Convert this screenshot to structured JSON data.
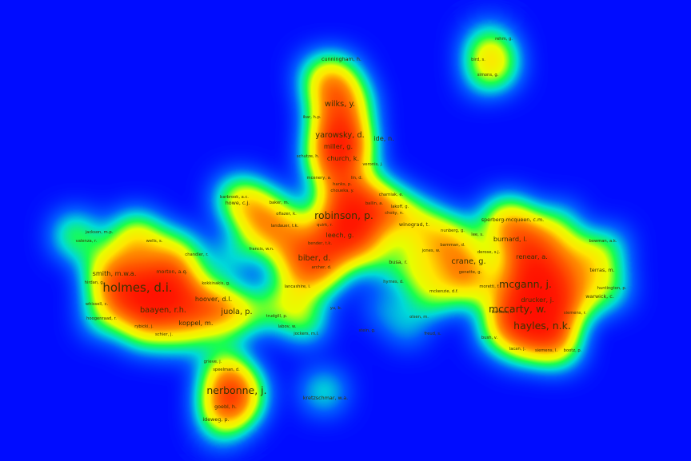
{
  "map": {
    "labels": [
      {
        "text": "rehm, g.",
        "size": 0
      },
      {
        "text": "bird, s.",
        "size": 0
      },
      {
        "text": "simons, g.",
        "size": 0
      },
      {
        "text": "cunningham, h.",
        "size": 1
      },
      {
        "text": "wilks, y.",
        "size": 3
      },
      {
        "text": "ikar, h.p.",
        "size": 0
      },
      {
        "text": "yarowsky, d.",
        "size": 3
      },
      {
        "text": "ide, n.",
        "size": 2
      },
      {
        "text": "miller, g.",
        "size": 2
      },
      {
        "text": "church, k.",
        "size": 2
      },
      {
        "text": "schutze, h.",
        "size": 0
      },
      {
        "text": "veronis, j.",
        "size": 0
      },
      {
        "text": "mcenery, a.",
        "size": 0
      },
      {
        "text": "lin, d.",
        "size": 0
      },
      {
        "text": "hanks, p.",
        "size": 0
      },
      {
        "text": "choueka, y.",
        "size": 0
      },
      {
        "text": "charniak, e.",
        "size": 0
      },
      {
        "text": "ballin, a.",
        "size": 0
      },
      {
        "text": "lakoff, g.",
        "size": 0
      },
      {
        "text": "choky, n.",
        "size": 0
      },
      {
        "text": "barbrook, a.c.",
        "size": 0
      },
      {
        "text": "baker, m.",
        "size": 0
      },
      {
        "text": "howe, c.j.",
        "size": 1
      },
      {
        "text": "oflazer, k.",
        "size": 0
      },
      {
        "text": "robinson, p.",
        "size": 4
      },
      {
        "text": "winograd, t.",
        "size": 1
      },
      {
        "text": "landauer, t.k.",
        "size": 0
      },
      {
        "text": "quirk, r.",
        "size": 0
      },
      {
        "text": "leech, g.",
        "size": 2
      },
      {
        "text": "nunberg, g.",
        "size": 0
      },
      {
        "text": "lee, s.",
        "size": 0
      },
      {
        "text": "sperberg-mcqueen, c.m.",
        "size": 1
      },
      {
        "text": "jackson, m.p.",
        "size": 0
      },
      {
        "text": "valenza, r.",
        "size": 0
      },
      {
        "text": "wells, s.",
        "size": 0
      },
      {
        "text": "bender, t.k.",
        "size": 0
      },
      {
        "text": "bamman, d.",
        "size": 0
      },
      {
        "text": "burnard, l.",
        "size": 2
      },
      {
        "text": "bowman, a.k.",
        "size": 0
      },
      {
        "text": "chandler, r.",
        "size": 0
      },
      {
        "text": "francis, w.n.",
        "size": 0
      },
      {
        "text": "jones, w.",
        "size": 0
      },
      {
        "text": "derose, s.j.",
        "size": 0
      },
      {
        "text": "biber, d.",
        "size": 3
      },
      {
        "text": "archer, d.",
        "size": 0
      },
      {
        "text": "busa, r.",
        "size": 1
      },
      {
        "text": "crane, g.",
        "size": 3
      },
      {
        "text": "renear, a.",
        "size": 2
      },
      {
        "text": "smith, m.w.a.",
        "size": 2
      },
      {
        "text": "morton, a.q.",
        "size": 1
      },
      {
        "text": "genette, g.",
        "size": 0
      },
      {
        "text": "terras, m.",
        "size": 1
      },
      {
        "text": "hirdan, g.",
        "size": 0
      },
      {
        "text": "kokkinakis, g.",
        "size": 0
      },
      {
        "text": "lancashire, i.",
        "size": 0
      },
      {
        "text": "hymes, d.",
        "size": 0
      },
      {
        "text": "holmes, d.i.",
        "size": 5
      },
      {
        "text": "moretti, f.",
        "size": 0
      },
      {
        "text": "mcgann, j.",
        "size": 4
      },
      {
        "text": "huntington, p.",
        "size": 0
      },
      {
        "text": "mckenzie, d.f.",
        "size": 0
      },
      {
        "text": "hoover, d.l.",
        "size": 2
      },
      {
        "text": "drucker, j.",
        "size": 2
      },
      {
        "text": "warwick, c.",
        "size": 1
      },
      {
        "text": "whissell, c.",
        "size": 0
      },
      {
        "text": "baayen, r.h.",
        "size": 3
      },
      {
        "text": "juola, p.",
        "size": 3
      },
      {
        "text": "mccarty, w.",
        "size": 4
      },
      {
        "text": "yu, b.",
        "size": 0
      },
      {
        "text": "barthes, r.",
        "size": 0
      },
      {
        "text": "siemens, r.",
        "size": 0
      },
      {
        "text": "hoogenraad, r.",
        "size": 0
      },
      {
        "text": "trudgill, p.",
        "size": 0
      },
      {
        "text": "olsen, m.",
        "size": 0
      },
      {
        "text": "rybicki, j.",
        "size": 0
      },
      {
        "text": "koppel, m.",
        "size": 2
      },
      {
        "text": "labov, w.",
        "size": 0
      },
      {
        "text": "jockers, m.l.",
        "size": 0
      },
      {
        "text": "stein, g.",
        "size": 0
      },
      {
        "text": "freud, s.",
        "size": 0
      },
      {
        "text": "hayles, n.k.",
        "size": 4
      },
      {
        "text": "schier, j.",
        "size": 0
      },
      {
        "text": "bush, v.",
        "size": 0
      },
      {
        "text": "lacan, j.",
        "size": 0
      },
      {
        "text": "siemens, l.",
        "size": 0
      },
      {
        "text": "bootz, p.",
        "size": 0
      },
      {
        "text": "grieve, j.",
        "size": 0
      },
      {
        "text": "speelman, d.",
        "size": 0
      },
      {
        "text": "nerbonne, j.",
        "size": 4
      },
      {
        "text": "kretzschmar, w.a.",
        "size": 1
      },
      {
        "text": "goebl, h.",
        "size": 1
      },
      {
        "text": "ideweg, p.",
        "size": 1
      }
    ]
  }
}
